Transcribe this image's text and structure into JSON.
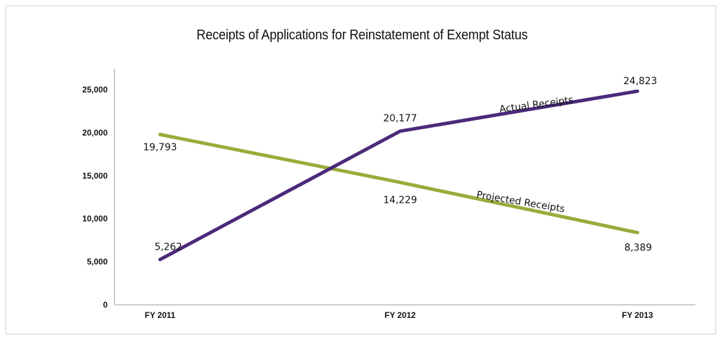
{
  "chart_data": {
    "type": "line",
    "title": "Receipts of Applications for Reinstatement of Exempt Status",
    "xlabel": "",
    "ylabel": "",
    "categories": [
      "FY 2011",
      "FY 2012",
      "FY 2013"
    ],
    "ylim": [
      0,
      25000
    ],
    "y_ticks": [
      "0",
      "5,000",
      "10,000",
      "15,000",
      "20,000",
      "25,000"
    ],
    "y_tick_values": [
      0,
      5000,
      10000,
      15000,
      20000,
      25000
    ],
    "grid": false,
    "series": [
      {
        "name": "Actual Receipts",
        "values": [
          5262,
          20177,
          24823
        ],
        "labels": [
          "5,262",
          "20,177",
          "24,823"
        ],
        "color": "#4b2a7b"
      },
      {
        "name": "Projected Receipts",
        "values": [
          19793,
          14229,
          8389
        ],
        "labels": [
          "19,793",
          "14,229",
          "8,389"
        ],
        "color": "#9aab3b"
      }
    ]
  }
}
